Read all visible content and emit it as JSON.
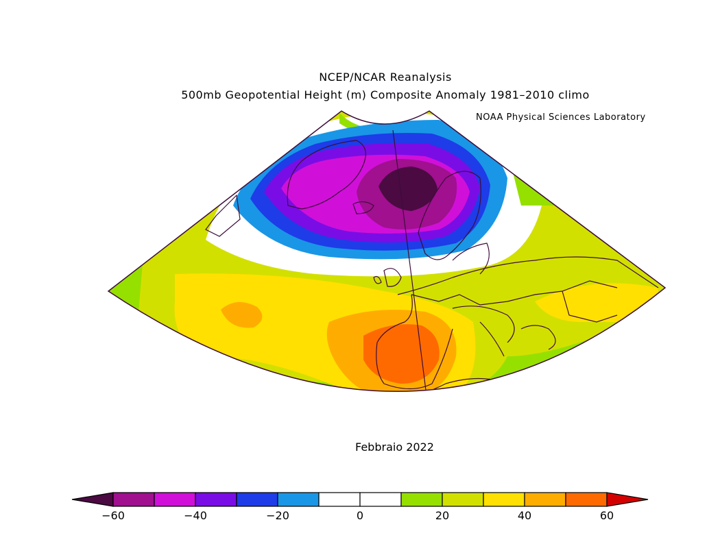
{
  "header": {
    "title_line1": "NCEP/NCAR Reanalysis",
    "title_line2": "500mb Geopotential Height (m) Composite Anomaly 1981–2010 climo",
    "credit": "NOAA Physical Sciences Laboratory"
  },
  "map": {
    "period_label": "Febbraio 2022",
    "projection": "polar-stereographic-sector",
    "region": "North Atlantic and Europe",
    "features": {
      "negative_anomaly_center": "Iceland–Norwegian Sea",
      "positive_anomaly_center": "Iberian Peninsula"
    }
  },
  "colorbar": {
    "tick_labels": [
      "−60",
      "−40",
      "−20",
      "0",
      "20",
      "40",
      "60"
    ],
    "bins": [
      {
        "range": "<-60",
        "color": "#4b0a42"
      },
      {
        "range": "-60 to -50",
        "color": "#a0108f"
      },
      {
        "range": "-50 to -40",
        "color": "#d010d8"
      },
      {
        "range": "-40 to -30",
        "color": "#7a0de6"
      },
      {
        "range": "-30 to -20",
        "color": "#1e3ce8"
      },
      {
        "range": "-20 to -10",
        "color": "#1a96e6"
      },
      {
        "range": "-10 to 0",
        "color": "#ffffff"
      },
      {
        "range": "0 to 10",
        "color": "#ffffff"
      },
      {
        "range": "10 to 20",
        "color": "#96e000"
      },
      {
        "range": "20 to 30",
        "color": "#d2e000"
      },
      {
        "range": "30 to 40",
        "color": "#ffe000"
      },
      {
        "range": "40 to 50",
        "color": "#ffac00"
      },
      {
        "range": "50 to 60",
        "color": "#ff6a00"
      },
      {
        "range": ">60",
        "color": "#d40000"
      }
    ]
  }
}
